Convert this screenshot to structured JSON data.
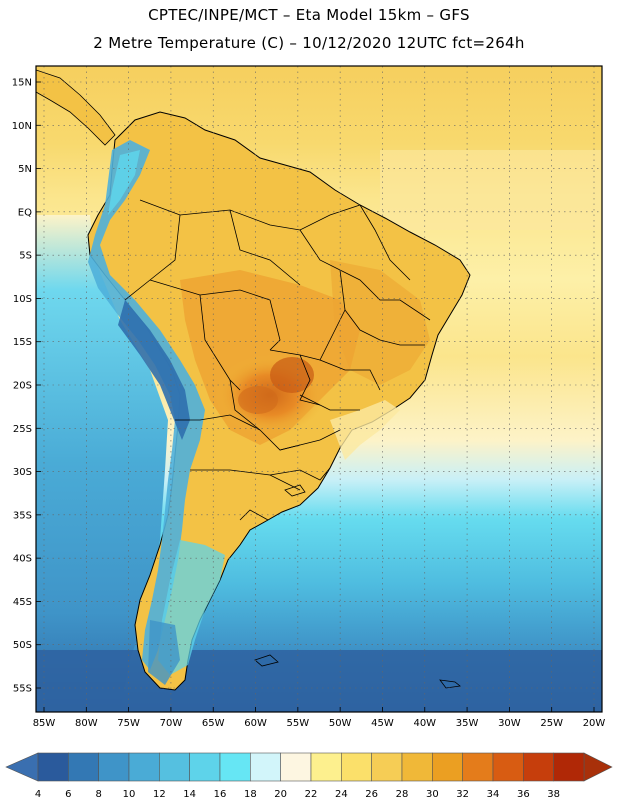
{
  "title_line1": "CPTEC/INPE/MCT –   Eta Model 15km – GFS",
  "title_line2": "2 Metre Temperature (C) – 10/12/2020 12UTC fct=264h",
  "lat_labels": [
    "15N",
    "10N",
    "5N",
    "EQ",
    "5S",
    "10S",
    "15S",
    "20S",
    "25S",
    "30S",
    "35S",
    "40S",
    "45S",
    "50S",
    "55S"
  ],
  "lat_values": [
    15,
    10,
    5,
    0,
    -5,
    -10,
    -15,
    -20,
    -25,
    -30,
    -35,
    -40,
    -45,
    -50,
    -55
  ],
  "lon_labels": [
    "85W",
    "80W",
    "75W",
    "70W",
    "65W",
    "60W",
    "55W",
    "50W",
    "45W",
    "40W",
    "35W",
    "30W",
    "25W",
    "20W"
  ],
  "lon_values": [
    -85,
    -80,
    -75,
    -70,
    -65,
    -60,
    -55,
    -50,
    -45,
    -40,
    -35,
    -30,
    -25,
    -20
  ],
  "colorbar": {
    "values": [
      "4",
      "6",
      "8",
      "10",
      "12",
      "14",
      "16",
      "18",
      "20",
      "22",
      "24",
      "26",
      "28",
      "30",
      "32",
      "34",
      "36",
      "38"
    ],
    "colors": [
      "#2a5a9c",
      "#3378b4",
      "#3f94c8",
      "#4aabd6",
      "#55c0e0",
      "#5ed3ea",
      "#66e6f4",
      "#d2f5fa",
      "#fdf6e1",
      "#fdf08e",
      "#fbe06a",
      "#f6cd55",
      "#f0b838",
      "#eb9f22",
      "#e47c1b",
      "#d85c12",
      "#c63e0c",
      "#b02806"
    ],
    "left_arrow_color": "#3a6fb0",
    "right_arrow_color": "#a8300a"
  },
  "field_colors": {
    "ocean_north": "#f8d66a",
    "ocean_north_light": "#fbe58a",
    "equator_belt": "#fdf3c8",
    "pacific_cool": "#5fd0ea",
    "pacific_mid": "#4aabd6",
    "atlantic_mid": "#4fb8dc",
    "southern_ocean": "#2e6aa8",
    "land_warm": "#f0b838",
    "land_hot": "#e47c1b",
    "land_hottest": "#c65a16",
    "andes": "#3378b4"
  }
}
